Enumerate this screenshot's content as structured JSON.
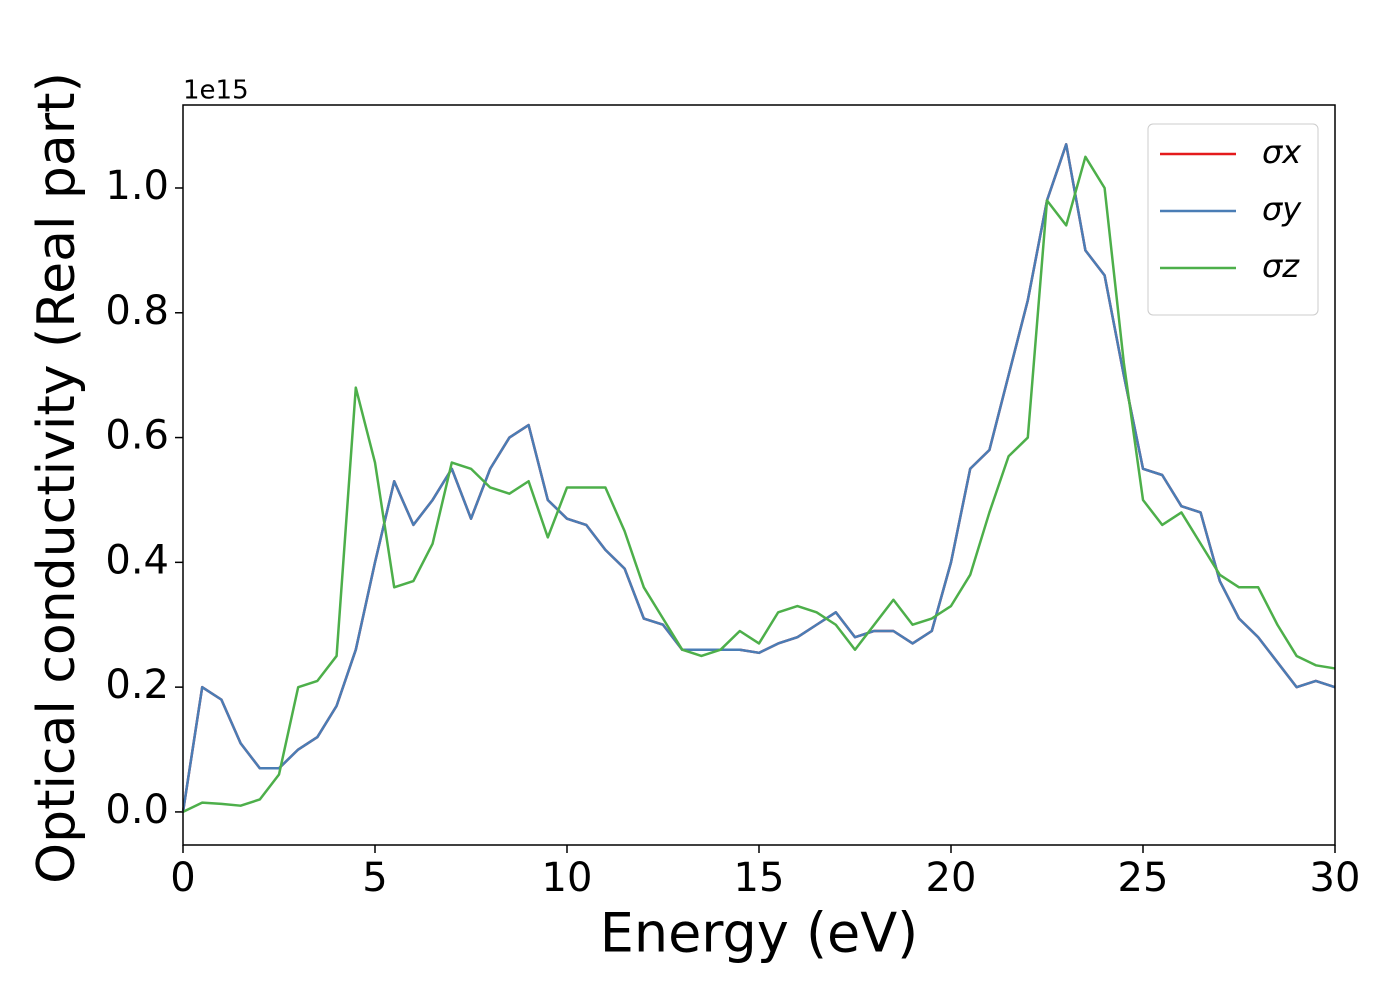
{
  "chart_data": {
    "type": "line",
    "xlabel": "Energy (eV)",
    "ylabel": "Optical conductivity (Real part)",
    "y_offset_label": "1e15",
    "x": [
      0,
      0.5,
      1,
      1.5,
      2,
      2.5,
      3,
      3.5,
      4,
      4.5,
      5,
      5.5,
      6,
      6.5,
      7,
      7.5,
      8,
      8.5,
      9,
      9.5,
      10,
      10.5,
      11,
      11.5,
      12,
      12.5,
      13,
      13.5,
      14,
      14.5,
      15,
      15.5,
      16,
      16.5,
      17,
      17.5,
      18,
      18.5,
      19,
      19.5,
      20,
      20.5,
      21,
      21.5,
      22,
      22.5,
      23,
      23.5,
      24,
      24.5,
      25,
      25.5,
      26,
      26.5,
      27,
      27.5,
      28,
      28.5,
      29,
      29.5,
      30
    ],
    "series": [
      {
        "name": "σx",
        "color": "#e41a1c",
        "values": [
          0,
          0.2,
          0.18,
          0.11,
          0.07,
          0.07,
          0.1,
          0.12,
          0.17,
          0.26,
          0.4,
          0.53,
          0.46,
          0.5,
          0.55,
          0.47,
          0.55,
          0.6,
          0.62,
          0.5,
          0.47,
          0.46,
          0.42,
          0.39,
          0.31,
          0.3,
          0.26,
          0.26,
          0.26,
          0.26,
          0.255,
          0.27,
          0.28,
          0.3,
          0.32,
          0.28,
          0.29,
          0.29,
          0.27,
          0.29,
          0.4,
          0.55,
          0.58,
          0.7,
          0.82,
          0.98,
          1.07,
          0.9,
          0.86,
          0.7,
          0.55,
          0.54,
          0.49,
          0.48,
          0.37,
          0.31,
          0.28,
          0.24,
          0.2,
          0.21,
          0.2
        ]
      },
      {
        "name": "σy",
        "color": "#4a7db5",
        "values": [
          0,
          0.2,
          0.18,
          0.11,
          0.07,
          0.07,
          0.1,
          0.12,
          0.17,
          0.26,
          0.4,
          0.53,
          0.46,
          0.5,
          0.55,
          0.47,
          0.55,
          0.6,
          0.62,
          0.5,
          0.47,
          0.46,
          0.42,
          0.39,
          0.31,
          0.3,
          0.26,
          0.26,
          0.26,
          0.26,
          0.255,
          0.27,
          0.28,
          0.3,
          0.32,
          0.28,
          0.29,
          0.29,
          0.27,
          0.29,
          0.4,
          0.55,
          0.58,
          0.7,
          0.82,
          0.98,
          1.07,
          0.9,
          0.86,
          0.7,
          0.55,
          0.54,
          0.49,
          0.48,
          0.37,
          0.31,
          0.28,
          0.24,
          0.2,
          0.21,
          0.2
        ]
      },
      {
        "name": "σz",
        "color": "#4daf4a",
        "values": [
          0,
          0.015,
          0.013,
          0.01,
          0.02,
          0.06,
          0.2,
          0.21,
          0.25,
          0.68,
          0.56,
          0.36,
          0.37,
          0.43,
          0.56,
          0.55,
          0.52,
          0.51,
          0.53,
          0.44,
          0.52,
          0.52,
          0.52,
          0.45,
          0.36,
          0.31,
          0.26,
          0.25,
          0.26,
          0.29,
          0.27,
          0.32,
          0.33,
          0.32,
          0.3,
          0.26,
          0.3,
          0.34,
          0.3,
          0.31,
          0.33,
          0.38,
          0.48,
          0.57,
          0.6,
          0.98,
          0.94,
          1.05,
          1.0,
          0.72,
          0.5,
          0.46,
          0.48,
          0.43,
          0.38,
          0.36,
          0.36,
          0.3,
          0.25,
          0.235,
          0.23
        ]
      }
    ],
    "xlim": [
      0,
      30
    ],
    "xticks": [
      0,
      5,
      10,
      15,
      20,
      25,
      30
    ],
    "ylim": [
      -0.053,
      1.133
    ],
    "yticks": [
      {
        "value": 0,
        "label": "0.0"
      },
      {
        "value": 0.2,
        "label": "0.2"
      },
      {
        "value": 0.4,
        "label": "0.4"
      },
      {
        "value": 0.6,
        "label": "0.6"
      },
      {
        "value": 0.8,
        "label": "0.8"
      },
      {
        "value": 1.0,
        "label": "1.0"
      }
    ],
    "legend": "upper right",
    "grid": false
  }
}
